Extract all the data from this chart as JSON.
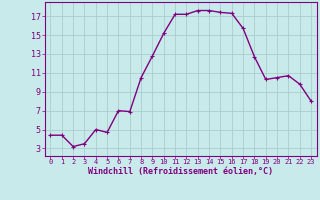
{
  "x": [
    0,
    1,
    2,
    3,
    4,
    5,
    6,
    7,
    8,
    9,
    10,
    11,
    12,
    13,
    14,
    15,
    16,
    17,
    18,
    19,
    20,
    21,
    22,
    23
  ],
  "y": [
    4.4,
    4.4,
    3.2,
    3.5,
    5.0,
    4.7,
    7.0,
    6.9,
    10.5,
    12.8,
    15.2,
    17.2,
    17.2,
    17.6,
    17.6,
    17.4,
    17.3,
    15.7,
    12.7,
    10.3,
    10.5,
    10.7,
    9.8,
    8.0
  ],
  "line_color": "#800080",
  "marker": "+",
  "bg_color": "#c8eaea",
  "grid_color": "#a8cece",
  "xlabel": "Windchill (Refroidissement éolien,°C)",
  "xtick_labels": [
    "0",
    "1",
    "2",
    "3",
    "4",
    "5",
    "6",
    "7",
    "8",
    "9",
    "10",
    "11",
    "12",
    "13",
    "14",
    "15",
    "16",
    "17",
    "18",
    "19",
    "20",
    "21",
    "22",
    "23"
  ],
  "ytick_labels": [
    "3",
    "5",
    "7",
    "9",
    "11",
    "13",
    "15",
    "17"
  ],
  "ytick_vals": [
    3,
    5,
    7,
    9,
    11,
    13,
    15,
    17
  ],
  "ylim": [
    2.2,
    18.5
  ],
  "xlim": [
    -0.5,
    23.5
  ],
  "tick_color": "#800080",
  "spine_color": "#800080",
  "xlabel_fontsize": 6.0,
  "xtick_fontsize": 5.0,
  "ytick_fontsize": 6.0,
  "marker_size": 3,
  "linewidth": 1.0
}
